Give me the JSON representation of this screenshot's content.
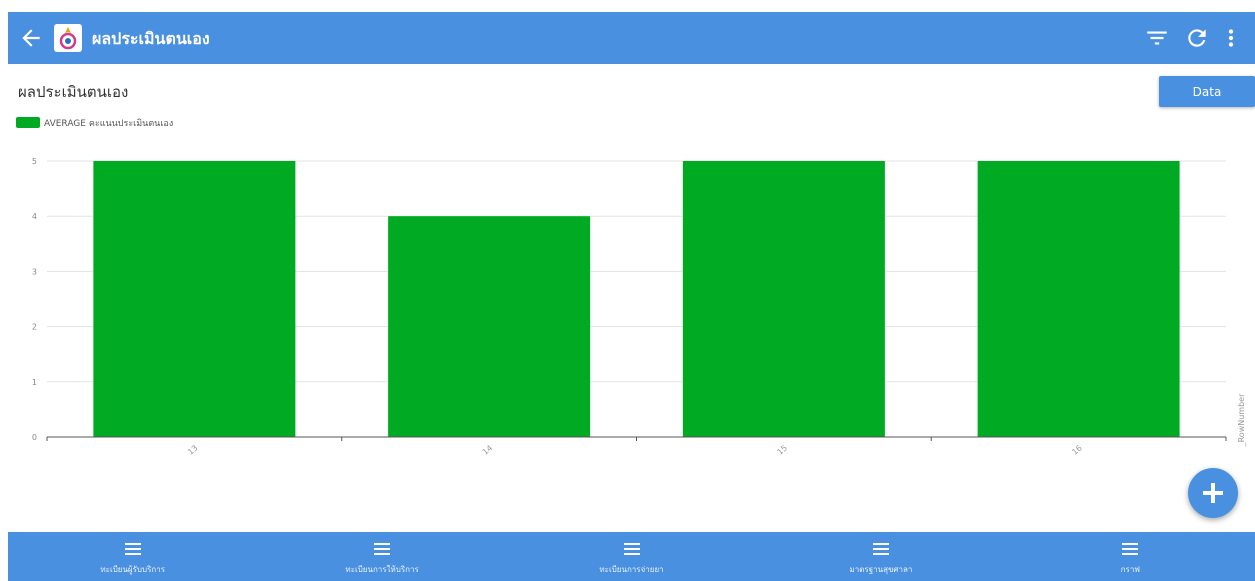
{
  "header": {
    "title": "ผลประเมินตนเอง"
  },
  "page": {
    "title": "ผลประเมินตนเอง",
    "data_button": "Data"
  },
  "colors": {
    "primary": "#4a90e0",
    "bar": "#00aa22"
  },
  "icons": {
    "header": [
      "back-arrow-icon",
      "app-logo-icon",
      "filter-icon",
      "refresh-icon",
      "more-vert-icon"
    ],
    "fab": "add-icon",
    "nav": "list-icon"
  },
  "chart_data": {
    "type": "bar",
    "title": "",
    "categories": [
      "13",
      "14",
      "15",
      "16"
    ],
    "series": [
      {
        "name": "AVERAGE คะแนนประเมินตนเอง",
        "values": [
          5,
          4,
          5,
          5
        ]
      }
    ],
    "ylim": [
      0,
      5
    ],
    "yticks": [
      "0",
      "1",
      "2",
      "3",
      "4",
      "5"
    ],
    "xlabel": "_RowNumber",
    "ylabel": "",
    "grid": true,
    "legend": "top-left"
  },
  "bottom_nav": [
    {
      "label": "ทะเบียนผู้รับบริการ"
    },
    {
      "label": "ทะเบียนการให้บริการ"
    },
    {
      "label": "ทะเบียนการจ่ายยา"
    },
    {
      "label": "มาตรฐานสุขศาลา"
    },
    {
      "label": "กราฟ"
    }
  ]
}
